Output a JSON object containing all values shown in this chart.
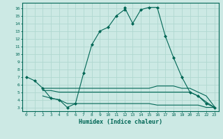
{
  "xlabel": "Humidex (Indice chaleur)",
  "background_color": "#cce9e4",
  "grid_color": "#b0d8d0",
  "line_color": "#006655",
  "xlim": [
    -0.5,
    23.5
  ],
  "ylim": [
    2.5,
    16.7
  ],
  "xticks": [
    0,
    1,
    2,
    3,
    4,
    5,
    6,
    7,
    8,
    9,
    10,
    11,
    12,
    13,
    14,
    15,
    16,
    17,
    18,
    19,
    20,
    21,
    22,
    23
  ],
  "yticks": [
    3,
    4,
    5,
    6,
    7,
    8,
    9,
    10,
    11,
    12,
    13,
    14,
    15,
    16
  ],
  "line1_x": [
    0,
    1,
    2,
    3,
    4,
    5,
    6,
    7,
    8,
    9,
    10,
    11,
    12,
    12,
    13,
    14,
    15,
    16,
    17,
    18,
    19,
    20,
    21,
    22,
    23
  ],
  "line1_y": [
    7.0,
    6.5,
    5.5,
    4.2,
    4.0,
    3.0,
    3.5,
    7.5,
    11.2,
    13.0,
    13.5,
    15.0,
    15.8,
    16.1,
    14.0,
    15.8,
    16.1,
    16.1,
    12.3,
    9.5,
    7.0,
    5.0,
    4.5,
    3.5,
    3.0
  ],
  "line2_x": [
    2,
    3,
    4,
    5,
    6,
    7,
    8,
    9,
    10,
    11,
    12,
    13,
    14,
    15,
    16,
    17,
    18,
    19,
    20,
    21,
    22,
    23
  ],
  "line2_y": [
    5.5,
    5.5,
    5.5,
    5.5,
    5.5,
    5.5,
    5.5,
    5.5,
    5.5,
    5.5,
    5.5,
    5.5,
    5.5,
    5.5,
    5.8,
    5.8,
    5.8,
    5.5,
    5.5,
    5.0,
    4.5,
    3.1
  ],
  "line3_x": [
    2,
    3,
    4,
    5,
    6,
    7,
    8,
    9,
    10,
    11,
    12,
    13,
    14,
    15,
    16,
    17,
    18,
    19,
    20,
    21,
    22,
    23
  ],
  "line3_y": [
    5.2,
    5.2,
    5.0,
    5.0,
    5.0,
    5.0,
    5.0,
    5.0,
    5.0,
    5.0,
    5.0,
    5.0,
    5.0,
    5.0,
    5.0,
    5.0,
    5.0,
    5.0,
    5.0,
    4.5,
    3.7,
    3.0
  ],
  "line4_x": [
    2,
    3,
    4,
    5,
    6,
    7,
    8,
    9,
    10,
    11,
    12,
    13,
    14,
    15,
    16,
    17,
    18,
    19,
    20,
    21,
    22,
    23
  ],
  "line4_y": [
    4.5,
    4.2,
    4.0,
    3.5,
    3.5,
    3.5,
    3.5,
    3.5,
    3.5,
    3.5,
    3.5,
    3.5,
    3.5,
    3.5,
    3.3,
    3.3,
    3.3,
    3.3,
    3.3,
    3.3,
    3.0,
    3.0
  ]
}
